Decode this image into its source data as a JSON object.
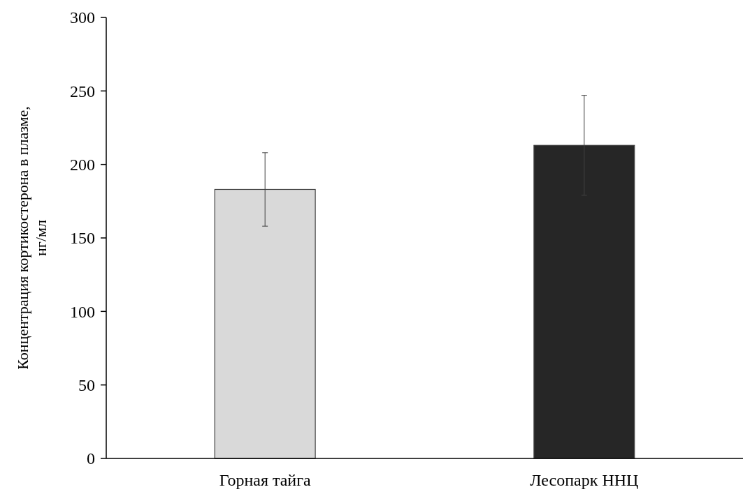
{
  "chart_data": {
    "type": "bar",
    "ylabel": "Концентрация кортикостерона в плазме, нг/мл",
    "categories": [
      "Горная тайга",
      "Лесопарк ННЦ"
    ],
    "values": [
      183,
      213
    ],
    "colors": [
      "#d9d9d9",
      "#262626"
    ],
    "errors": [
      25,
      34
    ],
    "ylim": [
      0,
      300
    ],
    "yticks": [
      0,
      50,
      100,
      150,
      200,
      250,
      300
    ]
  }
}
